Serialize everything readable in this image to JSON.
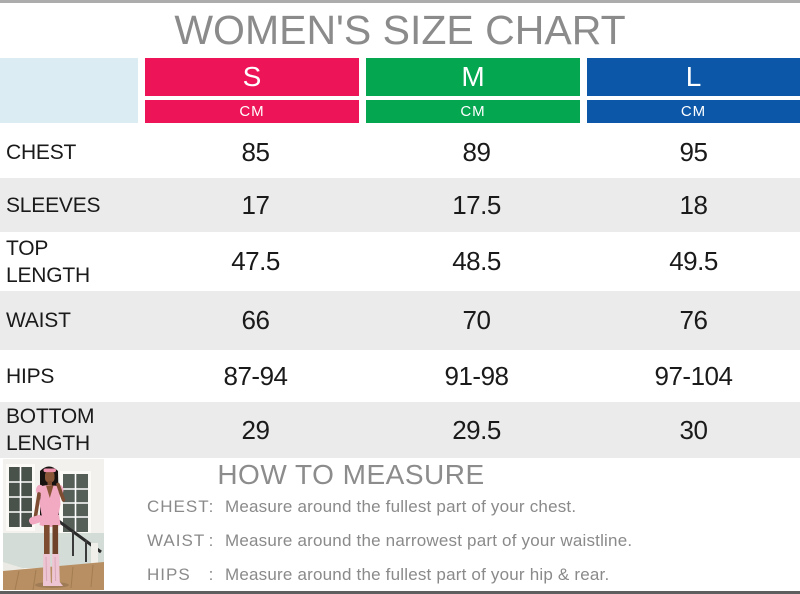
{
  "title": "WOMEN'S SIZE CHART",
  "unit_label": "CM",
  "colors": {
    "size_s": "#ED1458",
    "size_m": "#04A650",
    "size_l": "#0C57A8",
    "corner_cell": "#DBECF3",
    "row_alt": "#EBEBEB",
    "title_gray": "#8B8B8B"
  },
  "columns": [
    {
      "label": "S",
      "unit": "CM",
      "color": "#ED1458"
    },
    {
      "label": "M",
      "unit": "CM",
      "color": "#04A650"
    },
    {
      "label": "L",
      "unit": "CM",
      "color": "#0C57A8"
    }
  ],
  "chart_data": {
    "type": "table",
    "title": "WOMEN'S SIZE CHART",
    "unit": "CM",
    "columns": [
      "S",
      "M",
      "L"
    ],
    "rows": [
      {
        "label": "CHEST",
        "values": [
          "85",
          "89",
          "95"
        ]
      },
      {
        "label": "SLEEVES",
        "values": [
          "17",
          "17.5",
          "18"
        ]
      },
      {
        "label": "TOP LENGTH",
        "values": [
          "47.5",
          "48.5",
          "49.5"
        ]
      },
      {
        "label": "WAIST",
        "values": [
          "66",
          "70",
          "76"
        ]
      },
      {
        "label": "HIPS",
        "values": [
          "87-94",
          "91-98",
          "97-104"
        ]
      },
      {
        "label": "BOTTOM LENGTH",
        "values": [
          "29",
          "29.5",
          "30"
        ]
      }
    ]
  },
  "how_to_measure": {
    "heading": "HOW TO MEASURE",
    "items": [
      {
        "label": "CHEST",
        "colon": ":",
        "text": "Measure around the fullest part of your chest."
      },
      {
        "label": "WAIST",
        "colon": ":",
        "text": "Measure around the narrowest part of your waistline."
      },
      {
        "label": "HIPS",
        "colon": ":",
        "text": "Measure around the fullest part of your hip & rear."
      }
    ]
  }
}
